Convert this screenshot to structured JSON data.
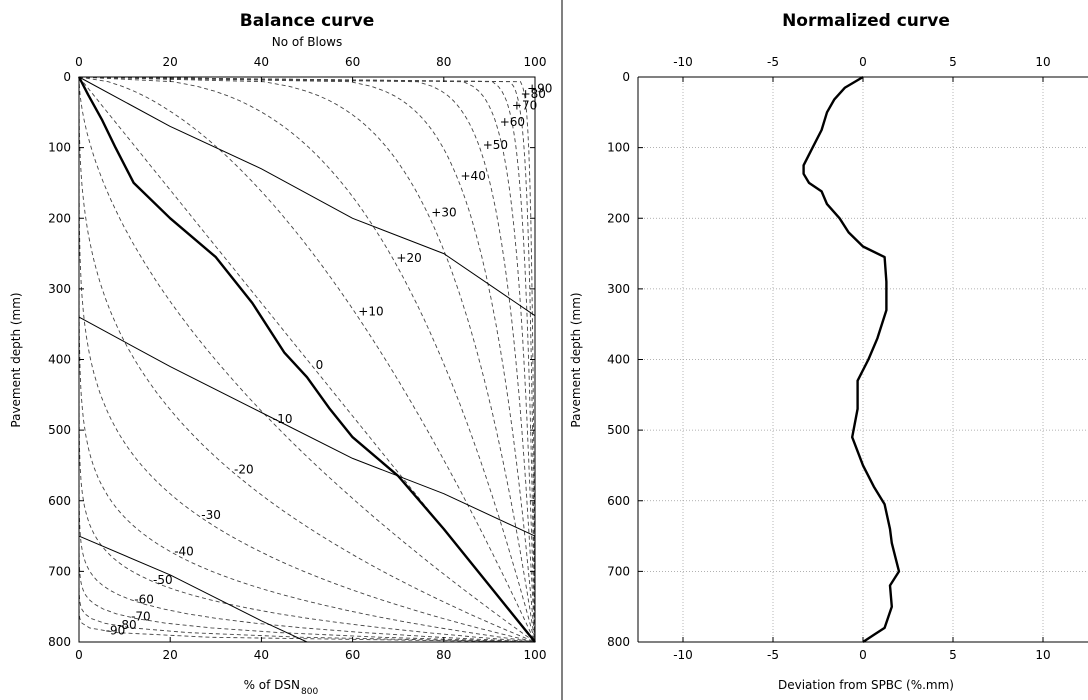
{
  "chart_data": [
    {
      "type": "line",
      "title": "Balance curve",
      "x2label": "No of Blows",
      "xlabel": "% of DSN",
      "xlabel_sub": "800",
      "ylabel": "Pavement depth (mm)",
      "xlim": [
        0,
        100
      ],
      "x2lim": [
        0,
        100
      ],
      "ylim": [
        0,
        800
      ],
      "y_inverted": true,
      "grid": false,
      "x_ticks": [
        0,
        20,
        40,
        60,
        80,
        100
      ],
      "y_ticks": [
        0,
        100,
        200,
        300,
        400,
        500,
        600,
        700,
        800
      ],
      "reference_curve_labels": [
        "+90",
        "+80",
        "+70",
        "+60",
        "+50",
        "+40",
        "+30",
        "+20",
        "+10",
        "0",
        "-10",
        "-20",
        "-30",
        "-40",
        "-50",
        "-60",
        "-70",
        "-80",
        "-90"
      ],
      "reference_curve_values": [
        90,
        80,
        70,
        60,
        50,
        40,
        30,
        20,
        10,
        0,
        -10,
        -20,
        -30,
        -40,
        -50,
        -60,
        -70,
        -80,
        -90
      ],
      "series": [
        {
          "style": "thick",
          "points": [
            [
              0,
              0
            ],
            [
              2,
              25
            ],
            [
              5,
              60
            ],
            [
              8,
              100
            ],
            [
              12,
              150
            ],
            [
              20,
              200
            ],
            [
              30,
              255
            ],
            [
              38,
              320
            ],
            [
              45,
              390
            ],
            [
              50,
              425
            ],
            [
              55,
              470
            ],
            [
              60,
              510
            ],
            [
              70,
              565
            ],
            [
              80,
              640
            ],
            [
              90,
              720
            ],
            [
              100,
              800
            ]
          ]
        },
        {
          "style": "thin",
          "points": [
            [
              0,
              0
            ],
            [
              20,
              70
            ],
            [
              40,
              130
            ],
            [
              60,
              200
            ],
            [
              80,
              250
            ],
            [
              100,
              338
            ]
          ]
        },
        {
          "style": "thin",
          "points": [
            [
              0,
              340
            ],
            [
              20,
              410
            ],
            [
              40,
              475
            ],
            [
              60,
              540
            ],
            [
              80,
              590
            ],
            [
              100,
              650
            ]
          ]
        },
        {
          "style": "thin",
          "points": [
            [
              0,
              650
            ],
            [
              20,
              705
            ],
            [
              40,
              770
            ],
            [
              50,
              800
            ]
          ]
        }
      ]
    },
    {
      "type": "line",
      "title": "Normalized curve",
      "xlabel": "Deviation from SPBC (%.mm)",
      "ylabel": "Pavement depth (mm)",
      "xlim": [
        -12.5,
        12.5
      ],
      "ylim": [
        0,
        800
      ],
      "y_inverted": true,
      "grid": true,
      "x_ticks": [
        -10,
        -5,
        0,
        5,
        10
      ],
      "y_ticks": [
        0,
        100,
        200,
        300,
        400,
        500,
        600,
        700,
        800
      ],
      "series": [
        {
          "style": "thick",
          "points": [
            [
              0,
              0
            ],
            [
              -1.0,
              15
            ],
            [
              -1.6,
              32
            ],
            [
              -2.0,
              50
            ],
            [
              -2.3,
              75
            ],
            [
              -2.8,
              100
            ],
            [
              -3.3,
              125
            ],
            [
              -3.3,
              137
            ],
            [
              -3.0,
              150
            ],
            [
              -2.3,
              162
            ],
            [
              -2.0,
              180
            ],
            [
              -1.3,
              200
            ],
            [
              -0.8,
              220
            ],
            [
              0,
              240
            ],
            [
              1.2,
              255
            ],
            [
              1.3,
              290
            ],
            [
              1.3,
              330
            ],
            [
              0.8,
              370
            ],
            [
              0.3,
              400
            ],
            [
              -0.3,
              430
            ],
            [
              -0.3,
              470
            ],
            [
              -0.6,
              510
            ],
            [
              -0.3,
              530
            ],
            [
              0,
              550
            ],
            [
              0.6,
              580
            ],
            [
              1.2,
              605
            ],
            [
              1.5,
              640
            ],
            [
              1.6,
              660
            ],
            [
              1.8,
              680
            ],
            [
              2.0,
              700
            ],
            [
              1.5,
              720
            ],
            [
              1.6,
              750
            ],
            [
              1.2,
              780
            ],
            [
              0.6,
              790
            ],
            [
              0,
              800
            ]
          ]
        }
      ]
    }
  ]
}
